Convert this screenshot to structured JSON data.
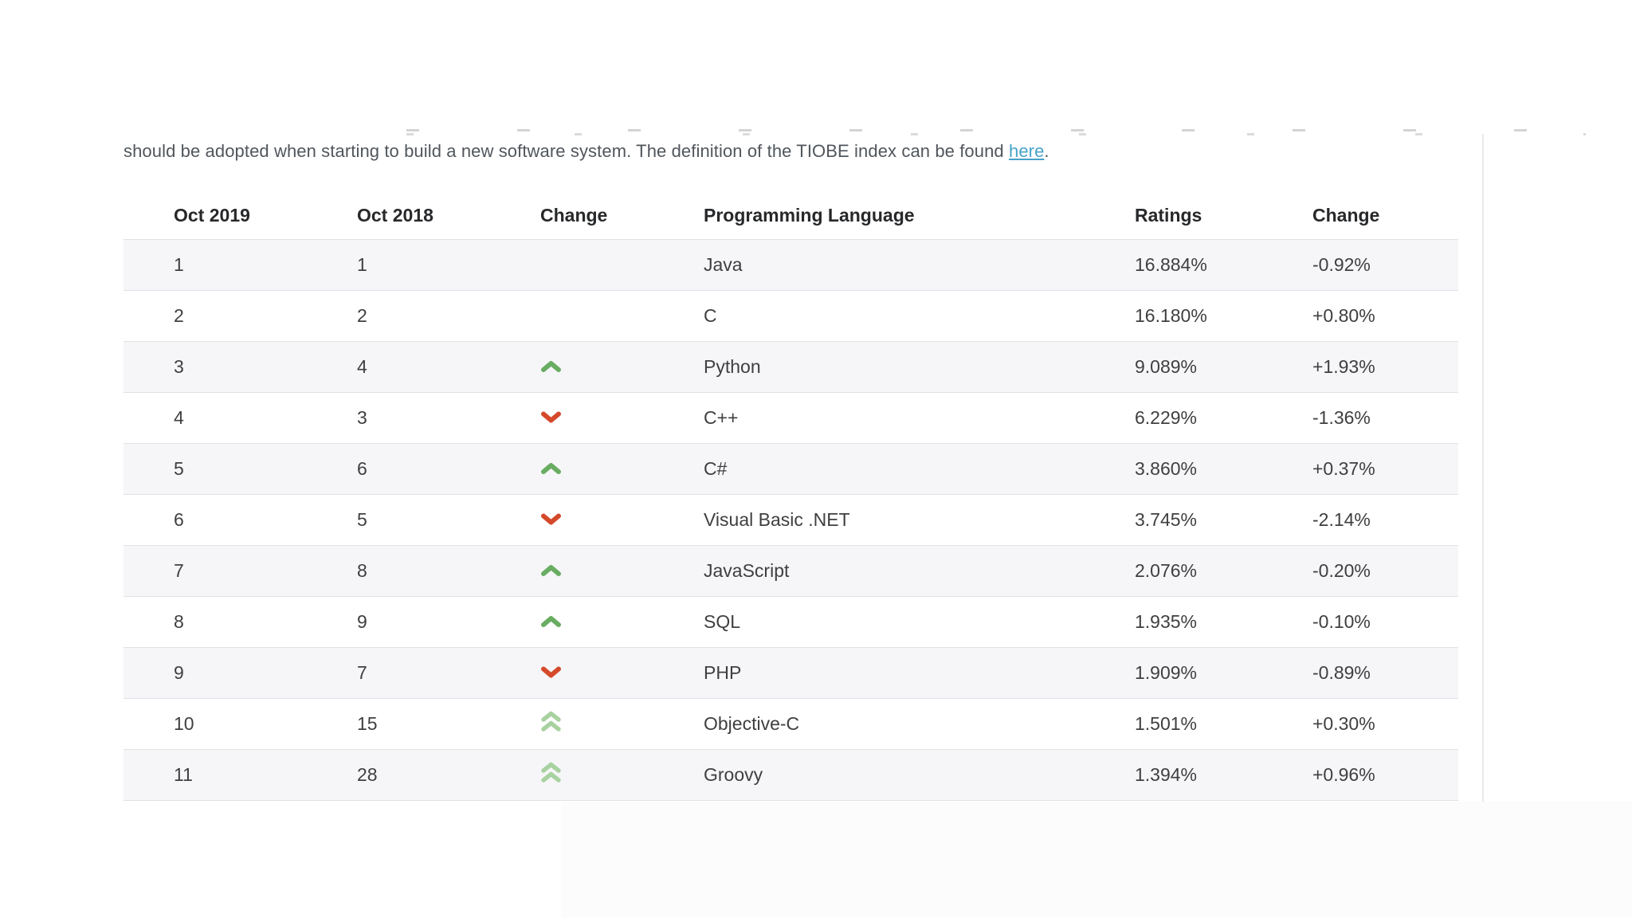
{
  "intro": {
    "text_before_link": "should be adopted when starting to build a new software system. The definition of the TIOBE index can be found ",
    "link_text": "here",
    "text_after_link": "."
  },
  "table": {
    "headers": [
      "Oct 2019",
      "Oct 2018",
      "Change",
      "Programming Language",
      "Ratings",
      "Change"
    ],
    "rows": [
      {
        "oct2019": "1",
        "oct2018": "1",
        "change": "none",
        "language": "Java",
        "ratings": "16.884%",
        "change_pct": "-0.92%"
      },
      {
        "oct2019": "2",
        "oct2018": "2",
        "change": "none",
        "language": "C",
        "ratings": "16.180%",
        "change_pct": "+0.80%"
      },
      {
        "oct2019": "3",
        "oct2018": "4",
        "change": "up",
        "language": "Python",
        "ratings": "9.089%",
        "change_pct": "+1.93%"
      },
      {
        "oct2019": "4",
        "oct2018": "3",
        "change": "down",
        "language": "C++",
        "ratings": "6.229%",
        "change_pct": "-1.36%"
      },
      {
        "oct2019": "5",
        "oct2018": "6",
        "change": "up",
        "language": "C#",
        "ratings": "3.860%",
        "change_pct": "+0.37%"
      },
      {
        "oct2019": "6",
        "oct2018": "5",
        "change": "down",
        "language": "Visual Basic .NET",
        "ratings": "3.745%",
        "change_pct": "-2.14%"
      },
      {
        "oct2019": "7",
        "oct2018": "8",
        "change": "up",
        "language": "JavaScript",
        "ratings": "2.076%",
        "change_pct": "-0.20%"
      },
      {
        "oct2019": "8",
        "oct2018": "9",
        "change": "up",
        "language": "SQL",
        "ratings": "1.935%",
        "change_pct": "-0.10%"
      },
      {
        "oct2019": "9",
        "oct2018": "7",
        "change": "down",
        "language": "PHP",
        "ratings": "1.909%",
        "change_pct": "-0.89%"
      },
      {
        "oct2019": "10",
        "oct2018": "15",
        "change": "double-up",
        "language": "Objective-C",
        "ratings": "1.501%",
        "change_pct": "+0.30%"
      },
      {
        "oct2019": "11",
        "oct2018": "28",
        "change": "double-up",
        "language": "Groovy",
        "ratings": "1.394%",
        "change_pct": "+0.96%"
      }
    ]
  },
  "colors": {
    "up_arrow": "#69ad62",
    "double_up_arrow": "#a8d2a0",
    "down_arrow": "#d4492a",
    "link": "#46a2c9",
    "row_stripe": "#f6f6f8",
    "row_border": "#e2e2e6",
    "header_text": "#27282a",
    "cell_text": "#3f3f41"
  }
}
